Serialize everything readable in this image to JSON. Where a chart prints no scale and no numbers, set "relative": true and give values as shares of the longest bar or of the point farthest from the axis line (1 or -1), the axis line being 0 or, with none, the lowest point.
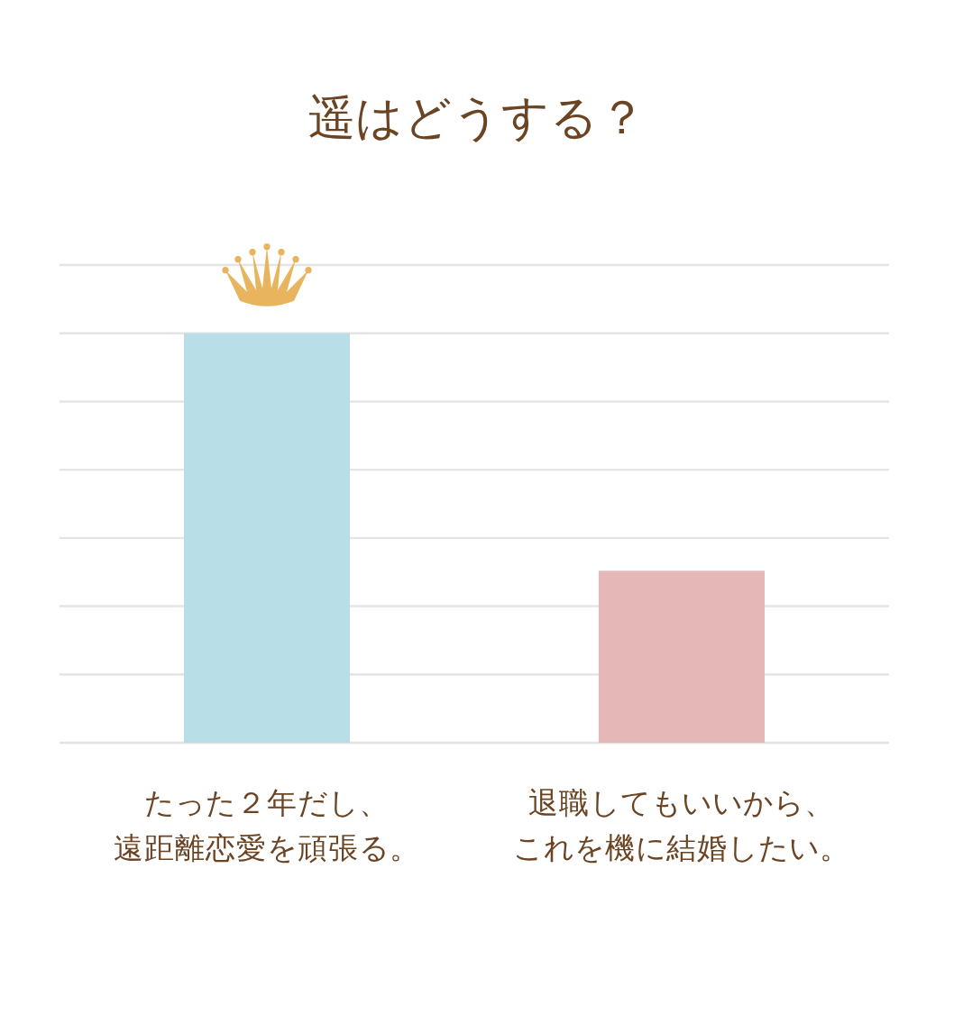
{
  "chart_data": {
    "type": "bar",
    "title": "遥はどうする？",
    "categories": [
      "たった２年だし、遠距離恋愛を頑張る。",
      "退職してもいいから、これを機に結婚したい。"
    ],
    "values": [
      1,
      0.42
    ],
    "colors": [
      "#b8dee8",
      "#e5b7b7"
    ],
    "relative": true,
    "grid": true
  }
}
